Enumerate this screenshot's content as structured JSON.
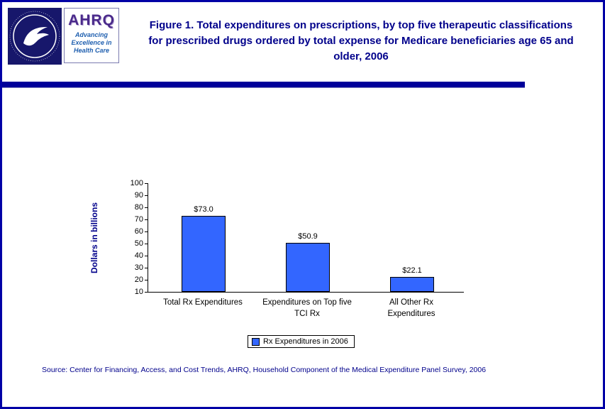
{
  "colors": {
    "page_border": "#0000A6",
    "title_text": "#00008B",
    "header_rule": "#000099",
    "bar_fill": "#3366FF",
    "source_text": "#00008B"
  },
  "header": {
    "title": "Figure 1. Total expenditures on prescriptions, by top five therapeutic classifications for prescribed drugs ordered by total expense for Medicare beneficiaries age 65 and older, 2006",
    "ahrq": {
      "name": "AHRQ",
      "tagline": "Advancing Excellence in Health Care"
    }
  },
  "chart_data": {
    "type": "bar",
    "categories": [
      "Total Rx Expenditures",
      "Expenditures on Top five TCI Rx",
      "All Other Rx Expenditures"
    ],
    "values": [
      73.0,
      50.9,
      22.1
    ],
    "data_labels": [
      "$73.0",
      "$50.9",
      "$22.1"
    ],
    "series_name": "Rx Expenditures in 2006",
    "title": "",
    "xlabel": "",
    "ylabel": "Dollars in billions",
    "ylim": [
      10,
      100
    ],
    "yticks": [
      100,
      90,
      80,
      70,
      60,
      50,
      40,
      30,
      20,
      10
    ],
    "grid": false,
    "bar_color": "#3366FF",
    "legend": {
      "position": "bottom",
      "label": "Rx Expenditures in 2006"
    }
  },
  "footer": {
    "source": "Source: Center for Financing, Access, and Cost Trends, AHRQ, Household Component of the Medical Expenditure Panel Survey, 2006"
  }
}
